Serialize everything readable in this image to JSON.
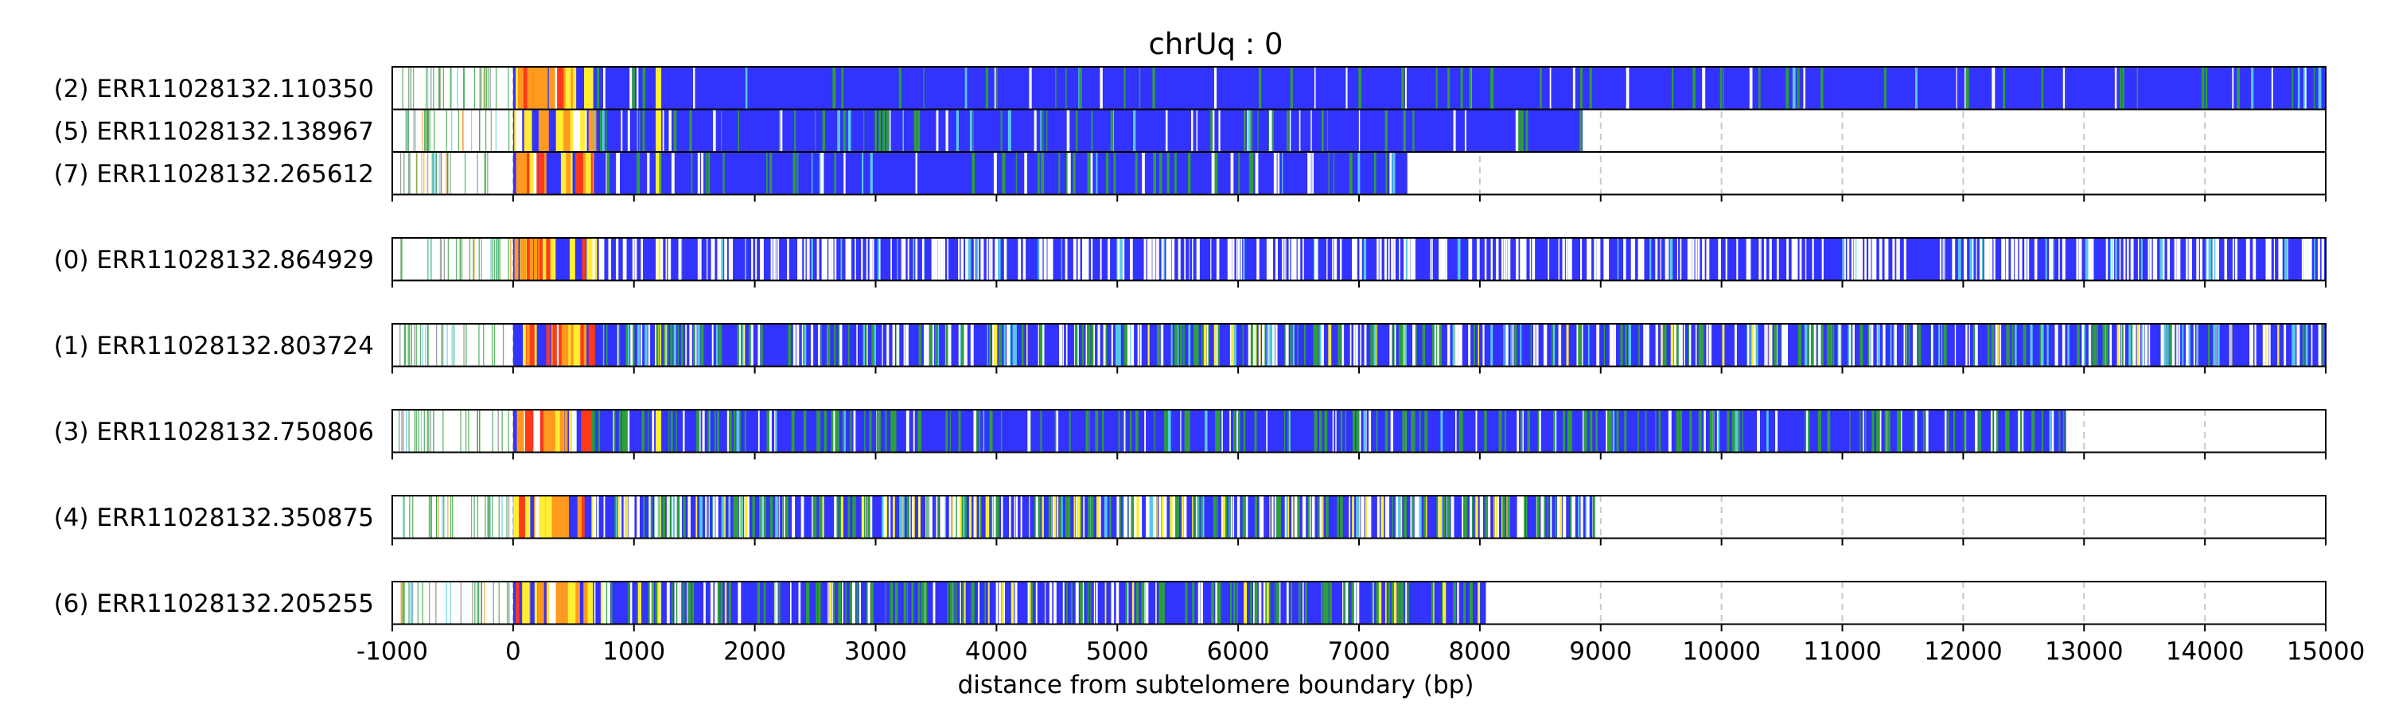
{
  "chart_data": {
    "type": "read-track",
    "title": "chrUq : 0",
    "xlabel": "distance from subtelomere boundary (bp)",
    "xlim": [
      -1000,
      15000
    ],
    "xticks": [
      -1000,
      0,
      1000,
      2000,
      3000,
      4000,
      5000,
      6000,
      7000,
      8000,
      9000,
      10000,
      11000,
      12000,
      13000,
      14000,
      15000
    ],
    "tick_labels": [
      "-1000",
      "0",
      "1000",
      "2000",
      "3000",
      "4000",
      "5000",
      "6000",
      "7000",
      "8000",
      "9000",
      "10000",
      "11000",
      "12000",
      "13000",
      "14000",
      "15000"
    ],
    "grid": "vertical dashed at 1000 bp intervals",
    "colors": {
      "base": "#3333ff",
      "yellow": "#ffee33",
      "orange": "#ff9a1f",
      "red": "#ff3a1a",
      "green": "#2e9e3a",
      "white": "#ffffff",
      "cyan": "#58c8e8",
      "grid": "#c8c8c8"
    },
    "groups": [
      {
        "reads": [
          {
            "label": "(2) ERR11028132.110350",
            "start": -1000,
            "end": 15000,
            "pattern": "mostly-blue",
            "seed": 11
          },
          {
            "label": "(5) ERR11028132.138967",
            "start": -1000,
            "end": 8850,
            "pattern": "mostly-blue",
            "seed": 23
          },
          {
            "label": "(7) ERR11028132.265612",
            "start": -1000,
            "end": 7400,
            "pattern": "mostly-blue",
            "seed": 37
          }
        ]
      },
      {
        "reads": [
          {
            "label": "(0) ERR11028132.864929",
            "start": -1000,
            "end": 15000,
            "pattern": "white-striped",
            "seed": 41
          }
        ]
      },
      {
        "reads": [
          {
            "label": "(1) ERR11028132.803724",
            "start": -1000,
            "end": 15000,
            "pattern": "dense-mixed",
            "seed": 53
          }
        ]
      },
      {
        "reads": [
          {
            "label": "(3) ERR11028132.750806",
            "start": -1000,
            "end": 12850,
            "pattern": "green-mid",
            "seed": 67
          }
        ]
      },
      {
        "reads": [
          {
            "label": "(4) ERR11028132.350875",
            "start": -1000,
            "end": 8950,
            "pattern": "mixed-yellow",
            "seed": 79
          }
        ]
      },
      {
        "reads": [
          {
            "label": "(6) ERR11028132.205255",
            "start": -1000,
            "end": 8050,
            "pattern": "green-patches",
            "seed": 83
          }
        ]
      }
    ]
  }
}
